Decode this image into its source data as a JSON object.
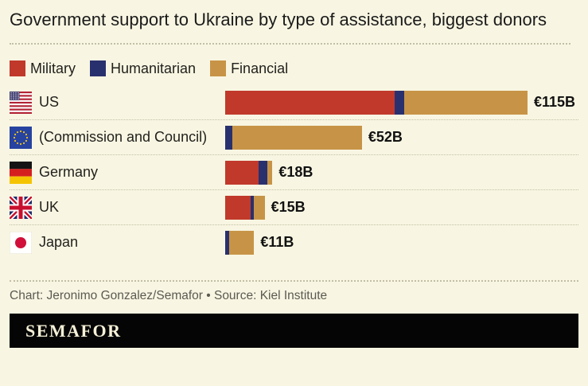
{
  "title": "Government support to Ukraine by type of assistance, biggest donors",
  "colors": {
    "background": "#f8f6e2",
    "military": "#c0392b",
    "humanitarian": "#29306e",
    "financial": "#c79447",
    "banner_bg": "#050505",
    "banner_text": "#f6f1d7",
    "credit_text": "#5c5a52",
    "divider": "#c2bda4"
  },
  "legend": [
    {
      "label": "Military",
      "color_key": "military"
    },
    {
      "label": "Humanitarian",
      "color_key": "humanitarian"
    },
    {
      "label": "Financial",
      "color_key": "financial"
    }
  ],
  "chart_data": {
    "type": "bar",
    "orientation": "horizontal",
    "stacked": true,
    "unit": "EUR billions",
    "title": "Government support to Ukraine by type of assistance, biggest donors",
    "categories": [
      "US",
      "(Commission and Council)",
      "Germany",
      "UK",
      "Japan"
    ],
    "flags": [
      "us",
      "eu",
      "de",
      "uk",
      "jp"
    ],
    "series": [
      {
        "name": "Military",
        "values": [
          64.5,
          0,
          12.8,
          9.8,
          0
        ]
      },
      {
        "name": "Humanitarian",
        "values": [
          3.5,
          2.8,
          3.4,
          1.2,
          1.5
        ]
      },
      {
        "name": "Financial",
        "values": [
          47,
          49.2,
          1.8,
          4.0,
          9.5
        ]
      }
    ],
    "totals": [
      115,
      52,
      18,
      15,
      11
    ],
    "total_labels": [
      "€115B",
      "€52B",
      "€18B",
      "€15B",
      "€11B"
    ],
    "xmax": 115,
    "legend_position": "top",
    "grid": false
  },
  "credit": "Chart: Jeronimo Gonzalez/Semafor • Source: Kiel Institute",
  "brand": "SEMAFOR"
}
